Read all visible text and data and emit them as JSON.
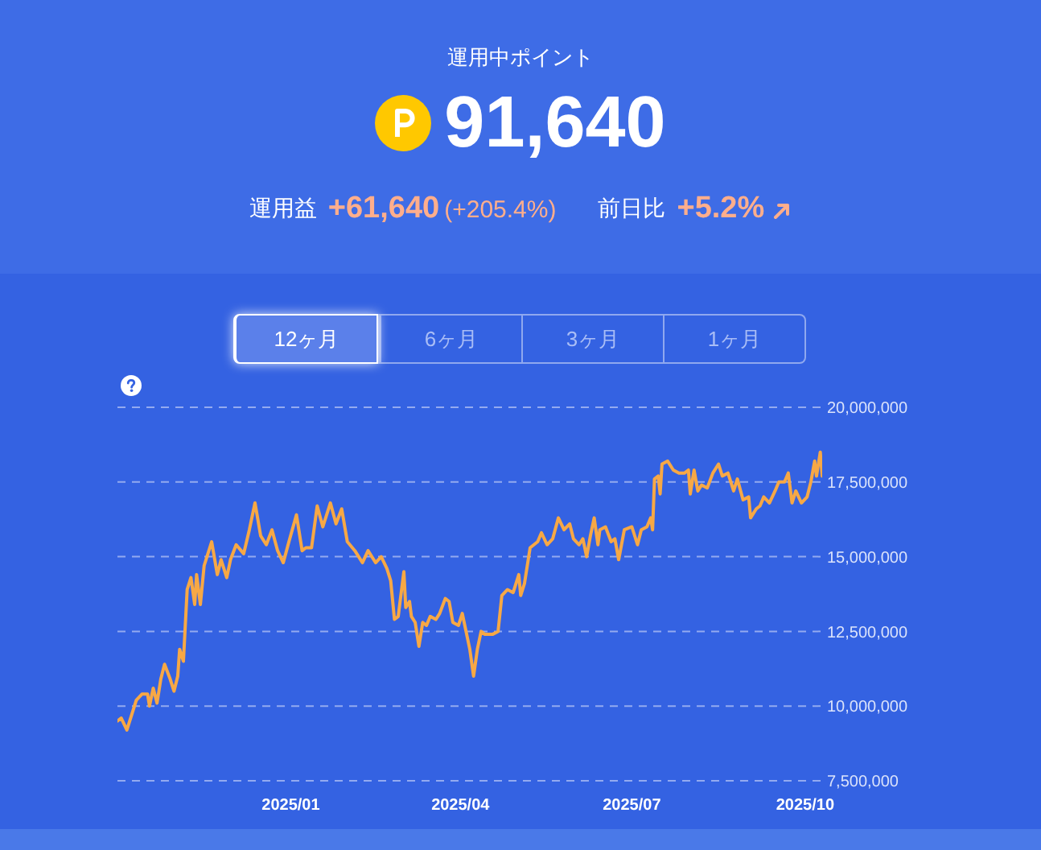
{
  "chart_data": [
    {
      "type": "other",
      "title": "運用中ポイント",
      "annotations": [
        "91,640",
        "運用益",
        "+61,640",
        "(+205.4%)",
        "前日比",
        "+5.2%"
      ]
    },
    {
      "type": "line",
      "annotations": [
        "12ヶ月",
        "6ヶ月",
        "3ヶ月",
        "1ヶ月"
      ],
      "x": [
        "2024-10-01",
        "2024-10-03",
        "2024-10-06",
        "2024-10-08",
        "2024-10-11",
        "2024-10-14",
        "2024-10-17",
        "2024-10-18",
        "2024-10-20",
        "2024-10-22",
        "2024-10-24",
        "2024-10-26",
        "2024-10-29",
        "2024-10-31",
        "2024-11-02",
        "2024-11-03",
        "2024-11-05",
        "2024-11-07",
        "2024-11-09",
        "2024-11-11",
        "2024-11-12",
        "2024-11-14",
        "2024-11-16",
        "2024-11-20",
        "2024-11-23",
        "2024-11-25",
        "2024-11-28",
        "2024-11-30",
        "2024-12-03",
        "2024-12-07",
        "2024-12-10",
        "2024-12-13",
        "2024-12-16",
        "2024-12-19",
        "2024-12-22",
        "2024-12-25",
        "2024-12-28",
        "2024-12-31",
        "2025-01-04",
        "2025-01-07",
        "2025-01-09",
        "2025-01-12",
        "2025-01-15",
        "2025-01-18",
        "2025-01-22",
        "2025-01-25",
        "2025-01-28",
        "2025-01-31",
        "2025-02-04",
        "2025-02-08",
        "2025-02-11",
        "2025-02-15",
        "2025-02-18",
        "2025-02-21",
        "2025-02-23",
        "2025-02-25",
        "2025-02-27",
        "2025-03-02",
        "2025-03-03",
        "2025-03-05",
        "2025-03-06",
        "2025-03-08",
        "2025-03-10",
        "2025-03-12",
        "2025-03-14",
        "2025-03-16",
        "2025-03-19",
        "2025-03-21",
        "2025-03-24",
        "2025-03-26",
        "2025-03-28",
        "2025-03-31",
        "2025-04-02",
        "2025-04-04",
        "2025-04-06",
        "2025-04-08",
        "2025-04-10",
        "2025-04-12",
        "2025-04-14",
        "2025-04-18",
        "2025-04-21",
        "2025-04-23",
        "2025-04-26",
        "2025-04-29",
        "2025-05-02",
        "2025-05-03",
        "2025-05-05",
        "2025-05-08",
        "2025-05-12",
        "2025-05-14",
        "2025-05-17",
        "2025-05-20",
        "2025-05-23",
        "2025-05-26",
        "2025-05-29",
        "2025-05-31",
        "2025-06-03",
        "2025-06-05",
        "2025-06-07",
        "2025-06-09",
        "2025-06-11",
        "2025-06-13",
        "2025-06-14",
        "2025-06-17",
        "2025-06-20",
        "2025-06-22",
        "2025-06-24",
        "2025-06-27",
        "2025-07-01",
        "2025-07-04",
        "2025-07-06",
        "2025-07-09",
        "2025-07-11",
        "2025-07-12",
        "2025-07-13",
        "2025-07-15",
        "2025-07-16",
        "2025-07-17",
        "2025-07-20",
        "2025-07-23",
        "2025-07-26",
        "2025-07-29",
        "2025-07-31",
        "2025-08-01",
        "2025-08-03",
        "2025-08-05",
        "2025-08-07",
        "2025-08-10",
        "2025-08-13",
        "2025-08-16",
        "2025-08-18",
        "2025-08-21",
        "2025-08-24",
        "2025-08-26",
        "2025-08-29",
        "2025-09-01",
        "2025-09-02",
        "2025-09-05",
        "2025-09-07",
        "2025-09-09",
        "2025-09-12",
        "2025-09-15",
        "2025-09-17",
        "2025-09-20",
        "2025-09-22",
        "2025-09-24",
        "2025-09-26",
        "2025-09-29",
        "2025-10-02",
        "2025-10-04",
        "2025-10-06",
        "2025-10-07",
        "2025-10-09",
        "2025-10-10"
      ],
      "values": [
        9500000,
        9600000,
        9200000,
        9600000,
        10200000,
        10400000,
        10400000,
        10000000,
        10600000,
        10100000,
        10900000,
        11400000,
        10900000,
        10500000,
        11000000,
        11900000,
        11500000,
        13900000,
        14300000,
        13400000,
        14400000,
        13400000,
        14700000,
        15500000,
        14400000,
        14900000,
        14300000,
        14900000,
        15400000,
        15100000,
        15900000,
        16800000,
        15700000,
        15400000,
        15900000,
        15200000,
        14800000,
        15500000,
        16400000,
        15200000,
        15300000,
        15300000,
        16700000,
        16000000,
        16800000,
        16100000,
        16600000,
        15500000,
        15200000,
        14800000,
        15200000,
        14800000,
        15000000,
        14600000,
        14200000,
        12900000,
        13000000,
        14500000,
        13300000,
        13500000,
        13000000,
        12800000,
        12000000,
        12800000,
        12700000,
        13000000,
        12900000,
        13100000,
        13600000,
        13500000,
        12800000,
        12700000,
        13100000,
        12500000,
        11900000,
        11000000,
        11900000,
        12500000,
        12400000,
        12400000,
        12500000,
        13700000,
        13900000,
        13800000,
        14400000,
        13700000,
        14100000,
        15300000,
        15500000,
        15800000,
        15400000,
        15600000,
        16300000,
        15900000,
        16100000,
        15600000,
        15400000,
        15600000,
        15000000,
        15700000,
        16300000,
        15400000,
        15900000,
        16000000,
        15500000,
        15600000,
        14900000,
        15900000,
        16000000,
        15400000,
        15900000,
        16000000,
        16300000,
        15900000,
        17600000,
        17700000,
        17100000,
        18100000,
        18200000,
        17900000,
        17800000,
        17800000,
        17900000,
        17100000,
        17900000,
        17200000,
        17400000,
        17300000,
        17800000,
        18100000,
        17700000,
        17800000,
        17200000,
        17600000,
        16900000,
        17000000,
        16300000,
        16600000,
        16700000,
        17000000,
        16800000,
        17200000,
        17500000,
        17500000,
        17800000,
        16800000,
        17200000,
        16800000,
        17000000,
        17500000,
        18200000,
        17700000,
        18500000,
        17700000
      ],
      "color": "#f7a845",
      "xlim": [
        "2024-10-01",
        "2025-10-10"
      ],
      "xticks": [
        {
          "value": "2025-01",
          "label": "2025/01"
        },
        {
          "value": "2025-04",
          "label": "2025/04"
        },
        {
          "value": "2025-07",
          "label": "2025/07"
        },
        {
          "value": "2025-10",
          "label": "2025/10"
        }
      ],
      "ylim": [
        7500000,
        20000000
      ],
      "yticks": [
        {
          "value": 7500000,
          "label": "7,500,000"
        },
        {
          "value": 10000000,
          "label": "10,000,000"
        },
        {
          "value": 12500000,
          "label": "12,500,000"
        },
        {
          "value": 15000000,
          "label": "15,000,000"
        },
        {
          "value": 17500000,
          "label": "17,500,000"
        },
        {
          "value": 20000000,
          "label": "20,000,000"
        }
      ],
      "grid": "y"
    }
  ]
}
